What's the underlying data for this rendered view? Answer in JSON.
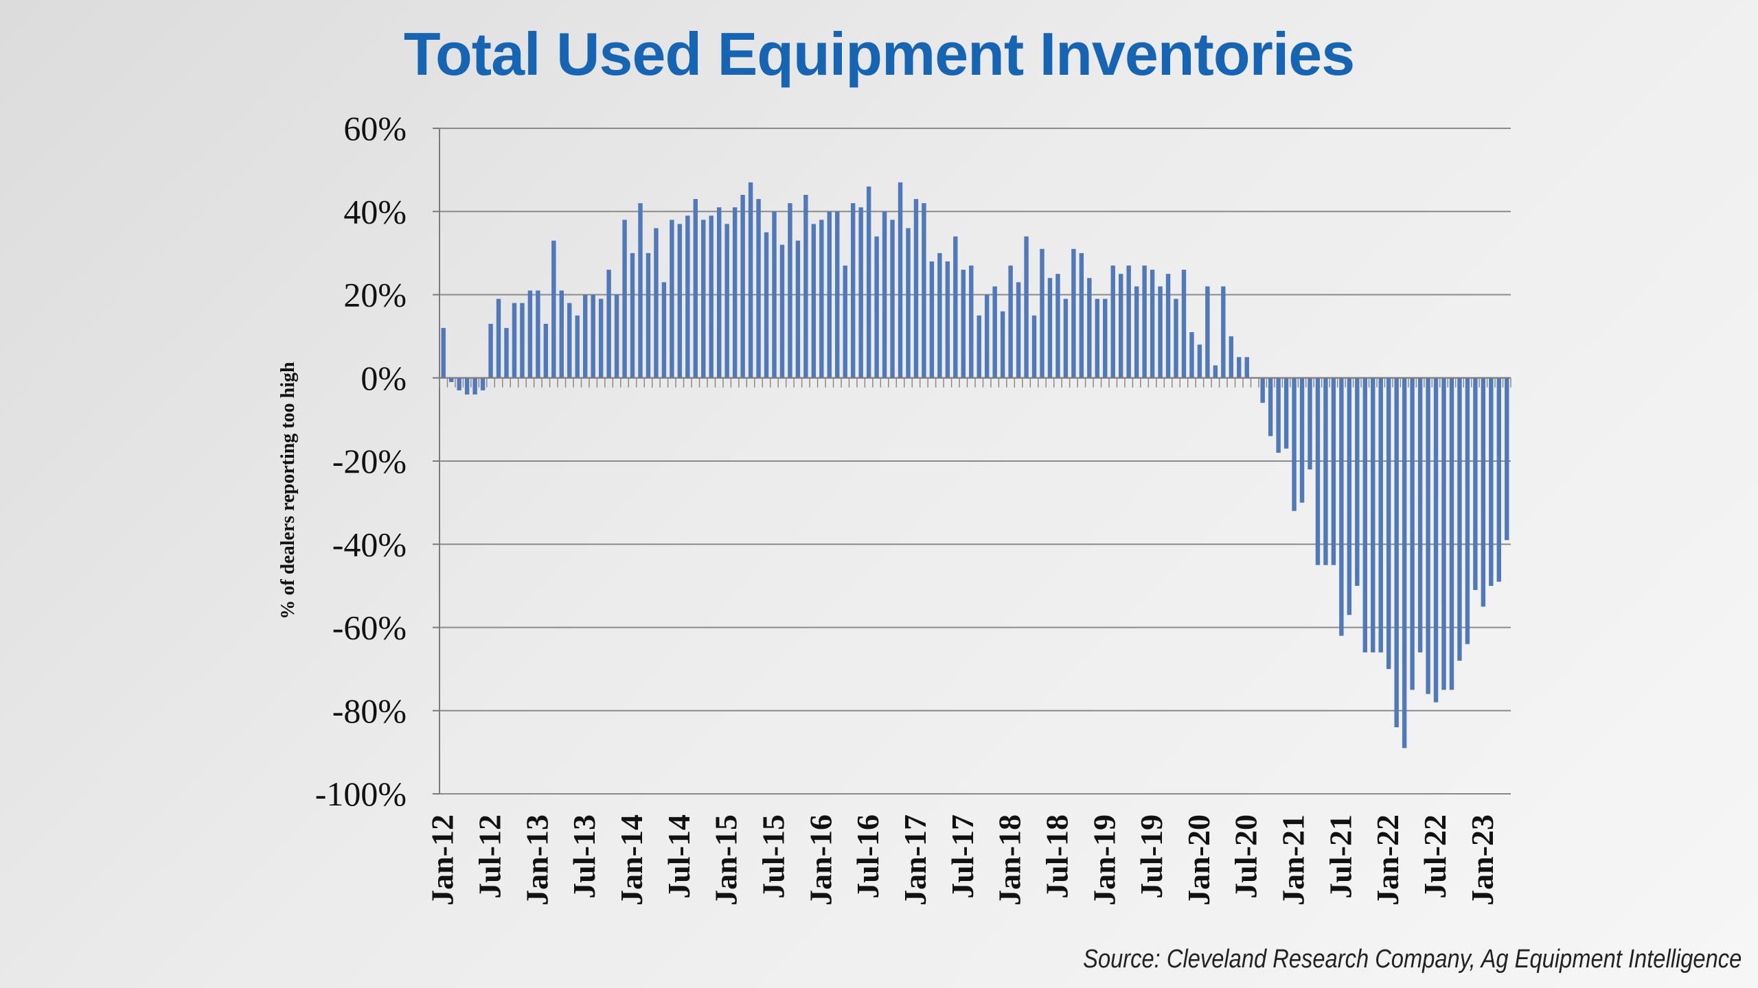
{
  "title": "Total Used Equipment Inventories",
  "source": "Source: Cleveland Research Company, Ag Equipment Intelligence",
  "colors": {
    "title": "#1565b4",
    "bar": "#4f79b8",
    "grid": "#8a8a8a"
  },
  "chart_data": {
    "type": "bar",
    "title": "Total Used Equipment Inventories",
    "xlabel": "",
    "ylabel": "% of dealers reporting too high",
    "ylim": [
      -100,
      60
    ],
    "y_ticks": [
      "60%",
      "40%",
      "20%",
      "0%",
      "-20%",
      "-40%",
      "-60%",
      "-80%",
      "-100%"
    ],
    "y_tick_values": [
      60,
      40,
      20,
      0,
      -20,
      -40,
      -60,
      -80,
      -100
    ],
    "grid": true,
    "legend": "none",
    "x_tick_labels": [
      "Jan-12",
      "Jul-12",
      "Jan-13",
      "Jul-13",
      "Jan-14",
      "Jul-14",
      "Jan-15",
      "Jul-15",
      "Jan-16",
      "Jul-16",
      "Jan-17",
      "Jul-17",
      "Jan-18",
      "Jul-18",
      "Jan-19",
      "Jul-19",
      "Jan-20",
      "Jul-20",
      "Jan-21",
      "Jul-21",
      "Jan-22",
      "Jul-22",
      "Jan-23"
    ],
    "x_start": "Jan-12",
    "x_end": "Jan-23",
    "frequency": "monthly",
    "values": [
      12,
      -1,
      -3,
      -4,
      -4,
      -3,
      13,
      19,
      12,
      18,
      18,
      21,
      21,
      13,
      33,
      21,
      18,
      15,
      20,
      20,
      19,
      26,
      20,
      38,
      30,
      42,
      30,
      36,
      23,
      38,
      37,
      39,
      43,
      38,
      39,
      41,
      37,
      41,
      44,
      47,
      43,
      35,
      40,
      32,
      42,
      33,
      44,
      37,
      38,
      40,
      40,
      27,
      42,
      41,
      46,
      34,
      40,
      38,
      47,
      36,
      43,
      42,
      28,
      30,
      28,
      34,
      26,
      27,
      15,
      20,
      22,
      16,
      27,
      23,
      34,
      15,
      31,
      24,
      25,
      19,
      31,
      30,
      24,
      19,
      19,
      27,
      25,
      27,
      22,
      27,
      26,
      22,
      25,
      19,
      26,
      11,
      8,
      22,
      3,
      22,
      10,
      5,
      5,
      0,
      -6,
      -14,
      -18,
      -17,
      -32,
      -30,
      -22,
      -45,
      -45,
      -45,
      -62,
      -57,
      -50,
      -66,
      -66,
      -66,
      -70,
      -84,
      -89,
      -75,
      -66,
      -76,
      -78,
      -75,
      -75,
      -68,
      -64,
      -51,
      -55,
      -50,
      -49,
      -39
    ]
  }
}
